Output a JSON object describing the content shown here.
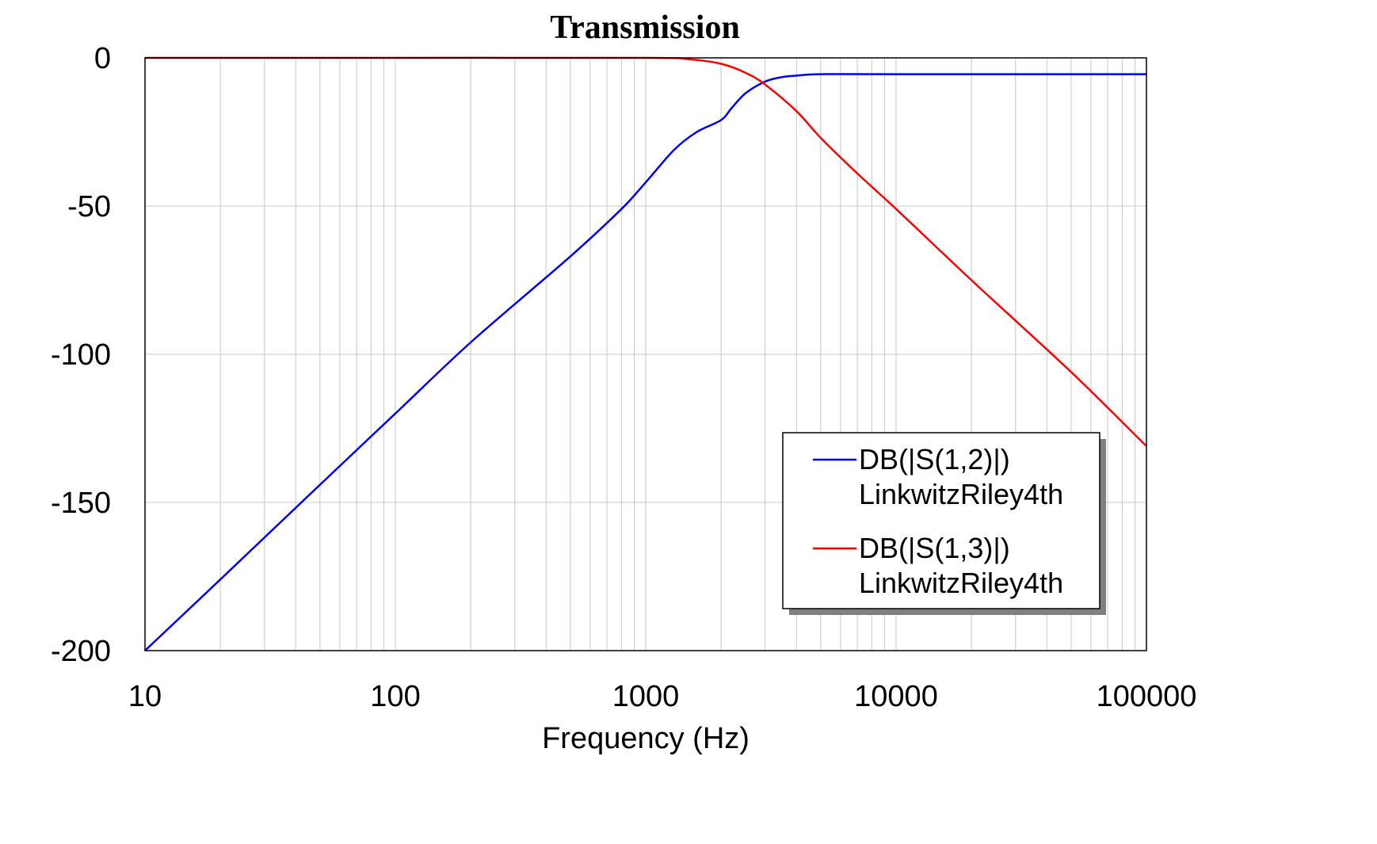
{
  "chart_data": {
    "type": "line",
    "title": "Transmission",
    "xlabel": "Frequency (Hz)",
    "ylabel": "",
    "x_scale": "log",
    "xlim": [
      10,
      100000
    ],
    "ylim": [
      -200,
      0
    ],
    "x_ticks": [
      10,
      100,
      1000,
      10000,
      100000
    ],
    "x_tick_labels": [
      "10",
      "100",
      "1000",
      "10000",
      "100000"
    ],
    "y_ticks": [
      0,
      -50,
      -100,
      -150,
      -200
    ],
    "y_tick_labels": [
      "0",
      "-50",
      "-100",
      "-150",
      "-200"
    ],
    "grid": true,
    "legend_position": "bottom-right",
    "series": [
      {
        "name": "DB(|S(1,2)|)",
        "subname": "LinkwitzRiley4th",
        "color": "#0000ff",
        "x": [
          10,
          20,
          50,
          100,
          200,
          500,
          800,
          1000,
          1300,
          1600,
          2000,
          2200,
          2500,
          3000,
          3500,
          4000,
          5000,
          10000,
          100000
        ],
        "y": [
          -200,
          -176,
          -144,
          -120,
          -96,
          -67,
          -51,
          -42,
          -31,
          -25,
          -21,
          -17,
          -12,
          -8,
          -6.5,
          -6,
          -5.5,
          -5.5,
          -5.5
        ]
      },
      {
        "name": "DB(|S(1,3)|)",
        "subname": "LinkwitzRiley4th",
        "color": "#ff0000",
        "x": [
          10,
          100,
          1000,
          1500,
          2000,
          2500,
          3000,
          4000,
          5000,
          7000,
          10000,
          20000,
          50000,
          100000
        ],
        "y": [
          0,
          0,
          0,
          -0.5,
          -2,
          -5,
          -9,
          -18,
          -27,
          -39,
          -51,
          -75,
          -106,
          -131
        ]
      }
    ]
  }
}
